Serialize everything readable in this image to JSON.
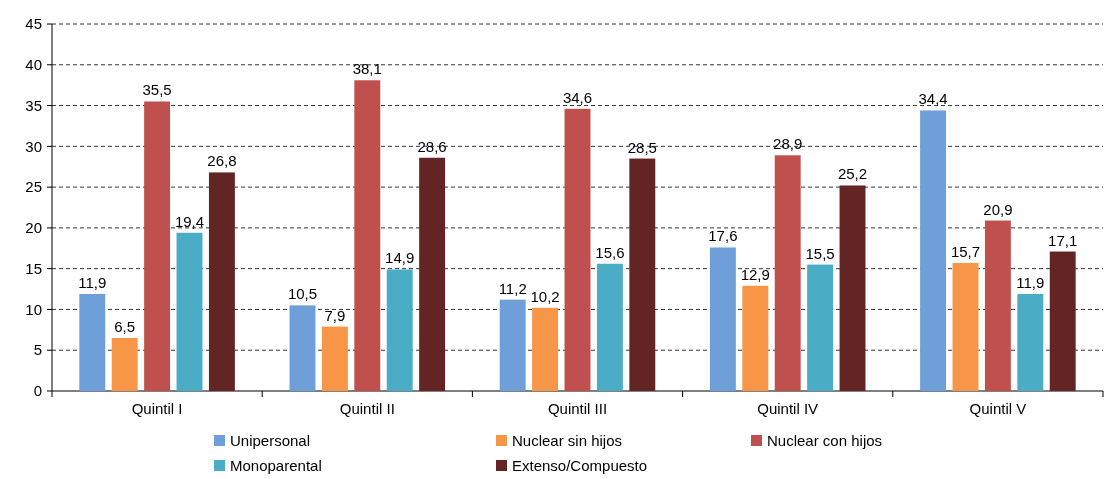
{
  "chart_data": {
    "type": "bar",
    "categories": [
      "Quintil I",
      "Quintil II",
      "Quintil III",
      "Quintil IV",
      "Quintil V"
    ],
    "series": [
      {
        "name": "Unipersonal",
        "color": "#6f9fd8",
        "values": [
          11.9,
          10.5,
          11.2,
          17.6,
          34.4
        ],
        "value_labels": [
          "11,9",
          "10,5",
          "11,2",
          "17,6",
          "34,4"
        ]
      },
      {
        "name": "Nuclear sin hijos",
        "color": "#f79646",
        "values": [
          6.5,
          7.9,
          10.2,
          12.9,
          15.7
        ],
        "value_labels": [
          "6,5",
          "7,9",
          "10,2",
          "12,9",
          "15,7"
        ]
      },
      {
        "name": "Nuclear con hijos",
        "color": "#c0504d",
        "values": [
          35.5,
          38.1,
          34.6,
          28.9,
          20.9
        ],
        "value_labels": [
          "35,5",
          "38,1",
          "34,6",
          "28,9",
          "20,9"
        ]
      },
      {
        "name": "Monoparental",
        "color": "#4bacc6",
        "values": [
          19.4,
          14.9,
          15.6,
          15.5,
          11.9
        ],
        "value_labels": [
          "19,4",
          "14,9",
          "15,6",
          "15,5",
          "11,9"
        ]
      },
      {
        "name": "Extenso/Compuesto",
        "color": "#632523",
        "values": [
          26.8,
          28.6,
          28.5,
          25.2,
          17.1
        ],
        "value_labels": [
          "26,8",
          "28,6",
          "28,5",
          "25,2",
          "17,1"
        ]
      }
    ],
    "ylim": [
      0,
      45
    ],
    "yticks": [
      0,
      5,
      10,
      15,
      20,
      25,
      30,
      35,
      40,
      45
    ],
    "grid": "y",
    "legend": "bottom"
  }
}
